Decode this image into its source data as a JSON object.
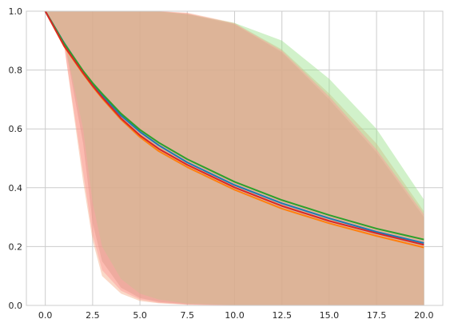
{
  "chart_data": {
    "type": "line",
    "title": "",
    "xlabel": "",
    "ylabel": "",
    "xlim": [
      -1.0,
      21.0
    ],
    "ylim": [
      0.0,
      1.0
    ],
    "grid": true,
    "x_ticks": [
      {
        "value": 0.0,
        "label": "0.0"
      },
      {
        "value": 2.5,
        "label": "2.5"
      },
      {
        "value": 5.0,
        "label": "5.0"
      },
      {
        "value": 7.5,
        "label": "7.5"
      },
      {
        "value": 10.0,
        "label": "10.0"
      },
      {
        "value": 12.5,
        "label": "12.5"
      },
      {
        "value": 15.0,
        "label": "15.0"
      },
      {
        "value": 17.5,
        "label": "17.5"
      },
      {
        "value": 20.0,
        "label": "20.0"
      }
    ],
    "y_ticks": [
      {
        "value": 0.0,
        "label": "0.0"
      },
      {
        "value": 0.2,
        "label": "0.2"
      },
      {
        "value": 0.4,
        "label": "0.4"
      },
      {
        "value": 0.6,
        "label": "0.6"
      },
      {
        "value": 0.8,
        "label": "0.8"
      },
      {
        "value": 1.0,
        "label": "1.0"
      }
    ],
    "x": [
      0,
      1,
      2,
      2.5,
      3,
      4,
      5,
      6,
      7.5,
      10,
      12.5,
      15,
      17.5,
      20
    ],
    "series": [
      {
        "color": "#1f77b4",
        "values": [
          1.0,
          0.892,
          0.795,
          0.753,
          0.715,
          0.645,
          0.59,
          0.544,
          0.486,
          0.409,
          0.347,
          0.296,
          0.25,
          0.212
        ],
        "band": {
          "upper": [
            1.0,
            1.0,
            1.0,
            1.0,
            1.0,
            1.0,
            1.0,
            0.999,
            0.99,
            0.955,
            0.86,
            0.7,
            0.52,
            0.3
          ],
          "lower": [
            1.0,
            0.9,
            0.55,
            0.28,
            0.15,
            0.06,
            0.025,
            0.012,
            0.004,
            0.001,
            0.0,
            0.0,
            0.0,
            0.0
          ],
          "color": "#a0867a"
        }
      },
      {
        "color": "#ff7f0e",
        "values": [
          1.0,
          0.88,
          0.787,
          0.744,
          0.704,
          0.632,
          0.572,
          0.524,
          0.47,
          0.393,
          0.329,
          0.279,
          0.236,
          0.197
        ],
        "band": {
          "upper": [
            1.0,
            1.0,
            1.0,
            1.0,
            1.0,
            1.0,
            1.0,
            1.0,
            0.995,
            0.96,
            0.87,
            0.72,
            0.55,
            0.32
          ],
          "lower": [
            1.0,
            0.88,
            0.42,
            0.22,
            0.1,
            0.04,
            0.015,
            0.007,
            0.002,
            0.0,
            0.0,
            0.0,
            0.0,
            0.0
          ],
          "color": "#f5a882"
        }
      },
      {
        "color": "#2ca02c",
        "values": [
          1.0,
          0.89,
          0.797,
          0.756,
          0.72,
          0.652,
          0.597,
          0.553,
          0.497,
          0.42,
          0.358,
          0.307,
          0.261,
          0.224
        ],
        "band": {
          "upper": [
            1.0,
            1.0,
            1.0,
            1.0,
            1.0,
            1.0,
            1.0,
            0.999,
            0.99,
            0.96,
            0.9,
            0.77,
            0.6,
            0.36
          ],
          "lower": [
            1.0,
            0.9,
            0.6,
            0.35,
            0.2,
            0.09,
            0.04,
            0.02,
            0.006,
            0.001,
            0.0,
            0.0,
            0.0,
            0.0
          ],
          "color": "#98df8a"
        }
      },
      {
        "color": "#d62728",
        "values": [
          1.0,
          0.882,
          0.79,
          0.747,
          0.708,
          0.636,
          0.578,
          0.532,
          0.478,
          0.401,
          0.338,
          0.287,
          0.245,
          0.206
        ],
        "band": {
          "upper": [
            1.0,
            1.0,
            1.0,
            1.0,
            1.0,
            1.0,
            1.0,
            1.0,
            0.993,
            0.958,
            0.865,
            0.71,
            0.53,
            0.31
          ],
          "lower": [
            1.0,
            0.88,
            0.45,
            0.24,
            0.12,
            0.05,
            0.02,
            0.009,
            0.003,
            0.0,
            0.0,
            0.0,
            0.0,
            0.0
          ],
          "color": "#ff9896"
        }
      }
    ]
  }
}
